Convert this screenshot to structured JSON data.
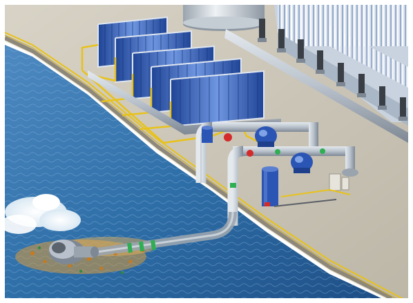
{
  "scene": {
    "subject": "seawater-intake-desalination-plant-illustration",
    "colors": {
      "sea": "#2f6fa8",
      "sea_light": "#6aa6d6",
      "deck": "#c9c3b4",
      "deck_dark": "#a8a294",
      "pipe": "#b9c2cc",
      "pipe_dark": "#7e8894",
      "membrane": "#2f5fb8",
      "membrane_light": "#7fa3e6",
      "rail": "#e8c21a",
      "pump_blue": "#2b55b5",
      "valve_red": "#d42a2a",
      "valve_green": "#2fae52",
      "seabed": "#d99a3c"
    }
  }
}
